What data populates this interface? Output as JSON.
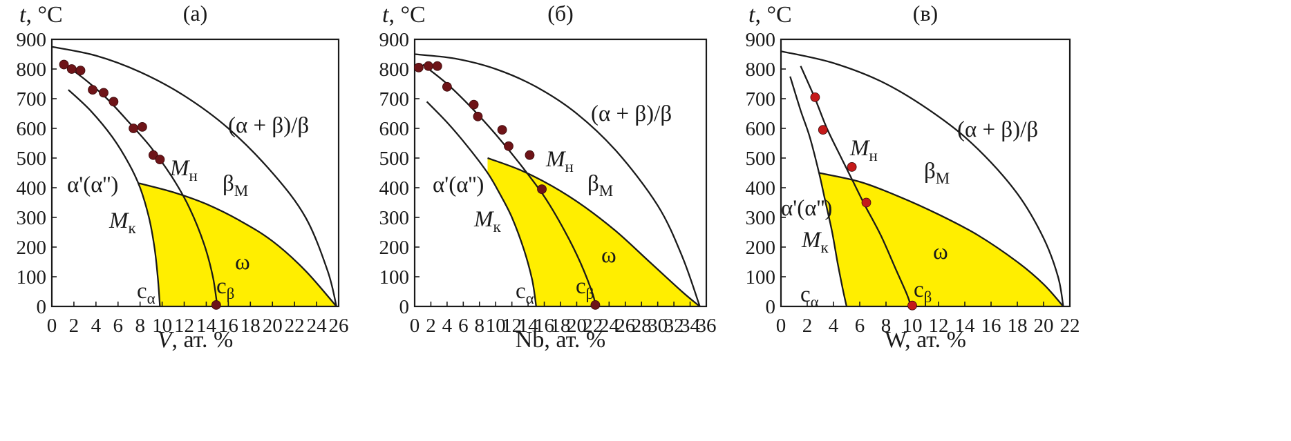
{
  "chart_data": [
    {
      "type": "line",
      "title": "(а)",
      "ylabel": "t, °C",
      "xlabel": "V, ат. %",
      "xlim": [
        0,
        26
      ],
      "ylim": [
        0,
        900
      ],
      "xticks": [
        "0",
        "2",
        "4",
        "6",
        "8",
        "10",
        "12",
        "14",
        "16",
        "18",
        "20",
        "22",
        "24",
        "26"
      ],
      "yticks": [
        "0",
        "100",
        "200",
        "300",
        "400",
        "500",
        "600",
        "700",
        "800",
        "900"
      ],
      "fill_color": "#ffee00",
      "series": [
        {
          "label": "(α + β)/β",
          "points": [
            [
              0,
              875
            ],
            [
              4,
              845
            ],
            [
              8,
              790
            ],
            [
              12,
              710
            ],
            [
              16,
              600
            ],
            [
              20,
              450
            ],
            [
              23,
              300
            ],
            [
              25,
              120
            ],
            [
              25.8,
              0
            ]
          ]
        },
        {
          "label": "Mн",
          "points": [
            [
              1,
              820
            ],
            [
              3,
              765
            ],
            [
              5,
              700
            ],
            [
              7,
              620
            ],
            [
              9,
              535
            ],
            [
              11,
              430
            ],
            [
              12.5,
              330
            ],
            [
              13.8,
              210
            ],
            [
              14.6,
              100
            ],
            [
              15,
              0
            ]
          ]
        },
        {
          "label": "Mк",
          "points": [
            [
              1.5,
              730
            ],
            [
              3.5,
              660
            ],
            [
              5.5,
              570
            ],
            [
              7,
              480
            ],
            [
              8,
              400
            ],
            [
              8.8,
              300
            ],
            [
              9.3,
              200
            ],
            [
              9.6,
              100
            ],
            [
              9.8,
              0
            ]
          ]
        },
        {
          "label": "ω",
          "points": [
            [
              7.9,
              415
            ],
            [
              11,
              385
            ],
            [
              14,
              345
            ],
            [
              17,
              290
            ],
            [
              20,
              220
            ],
            [
              23,
              120
            ],
            [
              25.8,
              0
            ]
          ]
        }
      ],
      "markers": {
        "color": "#6e1418",
        "points": [
          [
            1.1,
            815
          ],
          [
            1.8,
            800
          ],
          [
            2.6,
            795
          ],
          [
            3.7,
            730
          ],
          [
            4.7,
            720
          ],
          [
            5.6,
            690
          ],
          [
            7.4,
            600
          ],
          [
            8.2,
            605
          ],
          [
            9.2,
            510
          ],
          [
            9.8,
            495
          ],
          [
            14.9,
            5
          ]
        ]
      },
      "labels": {
        "boundary": "(α + β)/β",
        "beta": "β",
        "beta_sub": "М",
        "alpha": "α'(α'')",
        "mn": "M",
        "mn_sub": "н",
        "mk": "M",
        "mk_sub": "к",
        "omega": "ω",
        "calpha": "c",
        "calpha_sub": "α",
        "cbeta": "c",
        "cbeta_sub": "β"
      }
    },
    {
      "type": "line",
      "title": "(б)",
      "ylabel": "t, °C",
      "xlabel": "Nb, ат. %",
      "xlim": [
        0,
        36
      ],
      "ylim": [
        0,
        900
      ],
      "xticks": [
        "0",
        "2",
        "4",
        "6",
        "8",
        "10",
        "12",
        "14",
        "16",
        "18",
        "20",
        "22",
        "24",
        "26",
        "28",
        "30",
        "32",
        "34",
        "36"
      ],
      "yticks": [
        "0",
        "100",
        "200",
        "300",
        "400",
        "500",
        "600",
        "700",
        "800",
        "900"
      ],
      "fill_color": "#ffee00",
      "series": [
        {
          "label": "(α + β)/β",
          "points": [
            [
              0,
              850
            ],
            [
              5,
              835
            ],
            [
              10,
              800
            ],
            [
              15,
              740
            ],
            [
              20,
              650
            ],
            [
              25,
              520
            ],
            [
              30,
              340
            ],
            [
              33,
              170
            ],
            [
              35.2,
              0
            ]
          ]
        },
        {
          "label": "Mн",
          "points": [
            [
              1,
              815
            ],
            [
              4,
              750
            ],
            [
              7,
              670
            ],
            [
              10,
              580
            ],
            [
              13,
              480
            ],
            [
              16,
              370
            ],
            [
              18.5,
              255
            ],
            [
              20.5,
              145
            ],
            [
              22,
              40
            ],
            [
              22.3,
              0
            ]
          ]
        },
        {
          "label": "Mк",
          "points": [
            [
              1.5,
              690
            ],
            [
              4,
              620
            ],
            [
              6.5,
              540
            ],
            [
              9,
              450
            ],
            [
              10.5,
              380
            ],
            [
              12,
              300
            ],
            [
              13.5,
              190
            ],
            [
              14.5,
              90
            ],
            [
              15,
              0
            ]
          ]
        },
        {
          "label": "ω",
          "points": [
            [
              9,
              500
            ],
            [
              13,
              460
            ],
            [
              17,
              405
            ],
            [
              21,
              335
            ],
            [
              25,
              250
            ],
            [
              29,
              150
            ],
            [
              33,
              50
            ],
            [
              35.2,
              0
            ]
          ]
        }
      ],
      "markers": {
        "color": "#6e1418",
        "points": [
          [
            0.5,
            805
          ],
          [
            1.7,
            810
          ],
          [
            2.8,
            810
          ],
          [
            4,
            740
          ],
          [
            7.3,
            680
          ],
          [
            7.8,
            640
          ],
          [
            10.8,
            595
          ],
          [
            11.6,
            540
          ],
          [
            14.2,
            510
          ],
          [
            15.7,
            395
          ],
          [
            22.3,
            5
          ]
        ]
      },
      "labels": {
        "boundary": "(α + β)/β",
        "beta": "β",
        "beta_sub": "М",
        "alpha": "α'(α'')",
        "mn": "M",
        "mn_sub": "н",
        "mk": "M",
        "mk_sub": "к",
        "omega": "ω",
        "calpha": "c",
        "calpha_sub": "α",
        "cbeta": "c",
        "cbeta_sub": "β"
      }
    },
    {
      "type": "line",
      "title": "(в)",
      "ylabel": "t, °C",
      "xlabel": "W, ат. %",
      "xlim": [
        0,
        22
      ],
      "ylim": [
        0,
        900
      ],
      "xticks": [
        "0",
        "2",
        "4",
        "6",
        "8",
        "10",
        "12",
        "14",
        "16",
        "18",
        "20",
        "22"
      ],
      "yticks": [
        "0",
        "100",
        "200",
        "300",
        "400",
        "500",
        "600",
        "700",
        "800",
        "900"
      ],
      "fill_color": "#ffee00",
      "series": [
        {
          "label": "(α + β)/β",
          "points": [
            [
              0,
              860
            ],
            [
              4,
              820
            ],
            [
              8,
              750
            ],
            [
              12,
              640
            ],
            [
              15,
              530
            ],
            [
              18,
              380
            ],
            [
              20,
              230
            ],
            [
              21.1,
              100
            ],
            [
              21.5,
              0
            ]
          ]
        },
        {
          "label": "Mн",
          "points": [
            [
              1.5,
              810
            ],
            [
              2.6,
              700
            ],
            [
              3.5,
              600
            ],
            [
              4.6,
              500
            ],
            [
              5.5,
              420
            ],
            [
              6.4,
              340
            ],
            [
              7.6,
              240
            ],
            [
              8.7,
              130
            ],
            [
              9.6,
              40
            ],
            [
              9.9,
              0
            ]
          ]
        },
        {
          "label": "Mк",
          "points": [
            [
              0.7,
              775
            ],
            [
              1.5,
              660
            ],
            [
              2.2,
              570
            ],
            [
              2.9,
              450
            ],
            [
              3.4,
              350
            ],
            [
              3.9,
              250
            ],
            [
              4.3,
              150
            ],
            [
              4.7,
              60
            ],
            [
              5,
              0
            ]
          ]
        },
        {
          "label": "ω",
          "points": [
            [
              2.9,
              450
            ],
            [
              6,
              420
            ],
            [
              9,
              370
            ],
            [
              12,
              310
            ],
            [
              15,
              240
            ],
            [
              18,
              150
            ],
            [
              20,
              75
            ],
            [
              21.5,
              0
            ]
          ]
        }
      ],
      "markers": {
        "color": "#c41a1a",
        "points": [
          [
            2.6,
            705
          ],
          [
            3.2,
            595
          ],
          [
            5.4,
            470
          ],
          [
            6.5,
            350
          ],
          [
            10,
            3
          ]
        ]
      },
      "labels": {
        "boundary": "(α + β)/β",
        "beta": "β",
        "beta_sub": "М",
        "alpha": "α'(α'')",
        "mn": "M",
        "mn_sub": "н",
        "mk": "M",
        "mk_sub": "к",
        "omega": "ω",
        "calpha": "c",
        "calpha_sub": "α",
        "cbeta": "c",
        "cbeta_sub": "β"
      }
    }
  ]
}
